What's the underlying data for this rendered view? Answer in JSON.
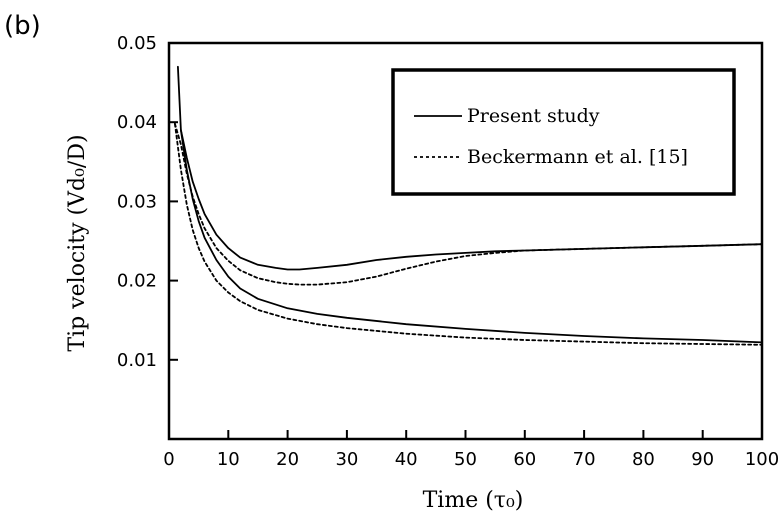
{
  "panel_label": "(b)",
  "chart_data": {
    "type": "line",
    "title": "",
    "xlabel": "Time (τ₀)",
    "ylabel": "Tip velocity (Vd₀/D)",
    "xlim": [
      0,
      100
    ],
    "ylim": [
      0,
      0.05
    ],
    "xticks": [
      0,
      10,
      20,
      30,
      40,
      50,
      60,
      70,
      80,
      90,
      100
    ],
    "yticks": [
      0.01,
      0.02,
      0.03,
      0.04,
      0.05
    ],
    "grid": false,
    "legend_position": "top-right",
    "legend": [
      {
        "label": "Present study",
        "style": "solid"
      },
      {
        "label": "Beckermann et al. [15]",
        "style": "dotted"
      }
    ],
    "series": [
      {
        "name": "Present study",
        "style": "solid",
        "curve": "upper",
        "x": [
          1.5,
          2,
          3,
          4,
          5,
          6,
          8,
          10,
          12,
          15,
          18,
          20,
          22,
          25,
          30,
          35,
          40,
          45,
          50,
          55,
          60,
          70,
          80,
          90,
          100
        ],
        "y": [
          0.047,
          0.039,
          0.0355,
          0.0325,
          0.0303,
          0.0284,
          0.0258,
          0.0241,
          0.0229,
          0.022,
          0.0216,
          0.0214,
          0.0214,
          0.0216,
          0.022,
          0.0226,
          0.023,
          0.0233,
          0.0235,
          0.0237,
          0.0238,
          0.024,
          0.0242,
          0.0244,
          0.0246
        ]
      },
      {
        "name": "Present study",
        "style": "solid",
        "curve": "lower",
        "x": [
          2,
          3,
          4,
          5,
          6,
          8,
          10,
          12,
          15,
          20,
          25,
          30,
          40,
          50,
          60,
          70,
          80,
          90,
          100
        ],
        "y": [
          0.039,
          0.034,
          0.0303,
          0.0275,
          0.0254,
          0.0226,
          0.0205,
          0.019,
          0.0177,
          0.0165,
          0.0158,
          0.0153,
          0.0145,
          0.0139,
          0.0134,
          0.013,
          0.0127,
          0.0125,
          0.0122
        ]
      },
      {
        "name": "Beckermann et al. [15]",
        "style": "dotted",
        "curve": "upper",
        "x": [
          1,
          2,
          3,
          4,
          5,
          6,
          8,
          10,
          12,
          15,
          18,
          20,
          22,
          25,
          30,
          35,
          40,
          45,
          50,
          55,
          60,
          70,
          80,
          90,
          100
        ],
        "y": [
          0.0398,
          0.0372,
          0.0335,
          0.0306,
          0.0284,
          0.0266,
          0.0241,
          0.0225,
          0.0213,
          0.0203,
          0.0198,
          0.0196,
          0.0195,
          0.0195,
          0.0198,
          0.0205,
          0.0215,
          0.0224,
          0.0231,
          0.0235,
          0.0238,
          0.024,
          0.0242,
          0.0244,
          0.0246
        ]
      },
      {
        "name": "Beckermann et al. [15]",
        "style": "dotted",
        "curve": "lower",
        "x": [
          1,
          2,
          3,
          4,
          5,
          6,
          8,
          10,
          12,
          15,
          20,
          25,
          30,
          40,
          50,
          60,
          70,
          80,
          90,
          100
        ],
        "y": [
          0.0398,
          0.034,
          0.0296,
          0.0264,
          0.0241,
          0.0224,
          0.02,
          0.0185,
          0.0174,
          0.0163,
          0.0152,
          0.0145,
          0.014,
          0.0133,
          0.0128,
          0.0125,
          0.0123,
          0.0121,
          0.012,
          0.0119
        ]
      }
    ]
  }
}
